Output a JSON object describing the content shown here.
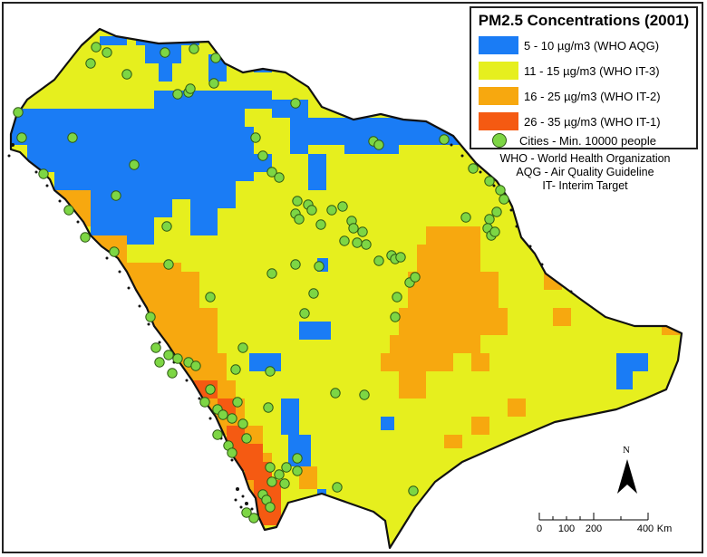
{
  "legend": {
    "title": "PM2.5 Concentrations (2001)",
    "items": [
      {
        "label": "5 - 10 µg/m3 (WHO AQG)",
        "color": "#1a7cf5"
      },
      {
        "label": "11 - 15 µg/m3 (WHO IT-3)",
        "color": "#e6ef1e"
      },
      {
        "label": "16 - 25 µg/m3 (WHO IT-2)",
        "color": "#f7a80f"
      },
      {
        "label": "26 - 35 µg/m3 (WHO IT-1)",
        "color": "#f55a12"
      }
    ],
    "cities_label": "Cities - Min. 10000 people",
    "city_color": "#7dd644"
  },
  "notes": {
    "line1": "WHO - World Health Organization",
    "line2": "AQG - Air Quality Guideline",
    "line3": "IT- Interim Target"
  },
  "north_arrow": {
    "label": "N"
  },
  "scale_bar": {
    "ticks": [
      "0",
      "100",
      "200",
      "400"
    ],
    "unit": "Km"
  },
  "colors": {
    "outline": "#111111",
    "coast": "#111111"
  }
}
